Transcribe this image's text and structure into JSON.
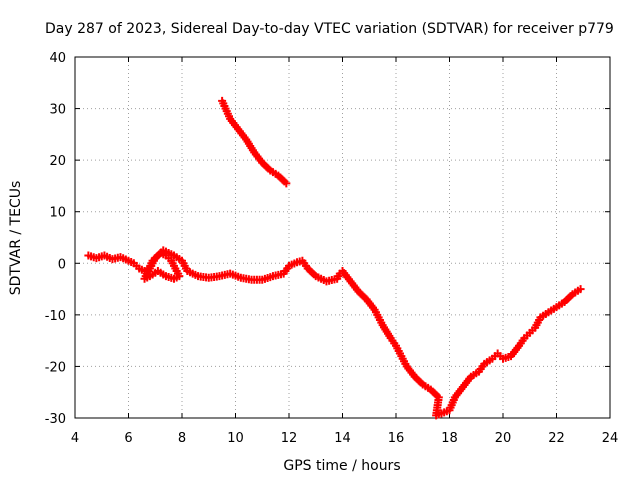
{
  "chart_data": {
    "type": "scatter",
    "title": "Day 287 of 2023, Sidereal Day-to-day VTEC variation (SDTVAR) for receiver p779",
    "xlabel": "GPS time / hours",
    "ylabel": "SDTVAR / TECUs",
    "xlim": [
      4,
      24
    ],
    "ylim": [
      -30,
      40
    ],
    "xticks": [
      4,
      6,
      8,
      10,
      12,
      14,
      16,
      18,
      20,
      22,
      24
    ],
    "yticks": [
      -30,
      -20,
      -10,
      0,
      10,
      20,
      30,
      40
    ],
    "grid": true,
    "marker": "plus",
    "color": "#ff0000",
    "series": [
      {
        "name": "main-track",
        "points": [
          [
            4.5,
            1.5
          ],
          [
            4.8,
            1.0
          ],
          [
            5.1,
            1.5
          ],
          [
            5.4,
            0.8
          ],
          [
            5.7,
            1.2
          ],
          [
            6.0,
            0.5
          ],
          [
            6.2,
            0.0
          ],
          [
            6.4,
            -1.0
          ],
          [
            6.6,
            -1.5
          ],
          [
            6.8,
            -1.0
          ],
          [
            7.0,
            1.0
          ],
          [
            7.2,
            2.0
          ],
          [
            7.4,
            1.5
          ],
          [
            7.6,
            0.5
          ],
          [
            7.8,
            -1.5
          ],
          [
            7.9,
            -2.5
          ],
          [
            7.7,
            -3.0
          ],
          [
            7.4,
            -2.5
          ],
          [
            7.1,
            -1.5
          ],
          [
            6.8,
            -2.5
          ],
          [
            6.6,
            -3.0
          ],
          [
            6.9,
            0.5
          ],
          [
            7.3,
            2.5
          ],
          [
            7.7,
            1.5
          ],
          [
            8.0,
            0.5
          ],
          [
            8.2,
            -1.5
          ],
          [
            8.6,
            -2.5
          ],
          [
            9.0,
            -2.8
          ],
          [
            9.4,
            -2.5
          ],
          [
            9.8,
            -2.0
          ],
          [
            10.2,
            -2.8
          ],
          [
            10.6,
            -3.2
          ],
          [
            11.0,
            -3.2
          ],
          [
            11.4,
            -2.5
          ],
          [
            11.8,
            -2.0
          ],
          [
            12.0,
            -0.5
          ],
          [
            12.3,
            0.2
          ],
          [
            12.5,
            0.5
          ],
          [
            12.7,
            -1.0
          ],
          [
            13.0,
            -2.5
          ],
          [
            13.4,
            -3.5
          ],
          [
            13.8,
            -3.0
          ],
          [
            13.9,
            -2.0
          ],
          [
            14.0,
            -1.5
          ],
          [
            14.3,
            -3.5
          ],
          [
            14.6,
            -5.5
          ],
          [
            14.9,
            -7.0
          ],
          [
            15.2,
            -9.0
          ],
          [
            15.5,
            -12.0
          ],
          [
            15.8,
            -14.5
          ],
          [
            16.0,
            -16.0
          ],
          [
            16.2,
            -18.0
          ],
          [
            16.4,
            -20.0
          ],
          [
            16.7,
            -22.0
          ],
          [
            17.0,
            -23.5
          ],
          [
            17.3,
            -24.5
          ],
          [
            17.6,
            -26.0
          ],
          [
            17.5,
            -29.5
          ],
          [
            18.0,
            -28.5
          ],
          [
            18.2,
            -26.0
          ],
          [
            18.5,
            -24.0
          ],
          [
            18.8,
            -22.0
          ],
          [
            19.1,
            -21.0
          ],
          [
            19.3,
            -19.5
          ],
          [
            19.6,
            -18.5
          ],
          [
            19.8,
            -17.5
          ],
          [
            20.0,
            -18.5
          ],
          [
            20.3,
            -18.0
          ],
          [
            20.6,
            -16.0
          ],
          [
            20.8,
            -14.5
          ],
          [
            21.0,
            -13.5
          ],
          [
            21.2,
            -12.5
          ],
          [
            21.4,
            -10.5
          ],
          [
            21.7,
            -9.5
          ],
          [
            22.0,
            -8.5
          ],
          [
            22.3,
            -7.5
          ],
          [
            22.6,
            -6.0
          ],
          [
            22.9,
            -5.0
          ]
        ]
      },
      {
        "name": "upper-track",
        "points": [
          [
            9.5,
            31.5
          ],
          [
            9.8,
            28.0
          ],
          [
            10.1,
            26.0
          ],
          [
            10.4,
            24.0
          ],
          [
            10.7,
            21.5
          ],
          [
            11.0,
            19.5
          ],
          [
            11.3,
            18.0
          ],
          [
            11.6,
            17.0
          ],
          [
            11.9,
            15.5
          ]
        ]
      }
    ]
  }
}
